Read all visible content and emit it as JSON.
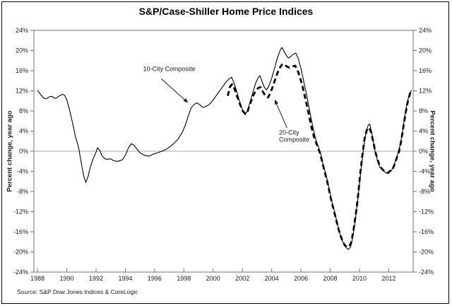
{
  "chart_data": {
    "type": "line",
    "title": "S&P/Case-Shiller Home Price Indices",
    "ylabel_left": "Percent change, year ago",
    "ylabel_right": "Percent change, year ago",
    "source_note": "Source: S&P Dow Jones Indices & CoreLogic",
    "xlim": [
      1987.75,
      2013.67
    ],
    "ylim": [
      -24,
      24
    ],
    "x_ticks": [
      1988,
      1990,
      1992,
      1994,
      1996,
      1998,
      2000,
      2002,
      2004,
      2006,
      2008,
      2010,
      2012
    ],
    "y_ticks": [
      24,
      20,
      16,
      12,
      8,
      4,
      0,
      -4,
      -8,
      -12,
      -16,
      -20,
      -24
    ],
    "y_tick_suffix": "%",
    "grid": "zero-line-only",
    "legend": "inline-annotations",
    "line_color": "#000000",
    "series": [
      {
        "name": "10-City Composite",
        "style": "solid",
        "points": [
          [
            1988.0,
            12.1
          ],
          [
            1988.2,
            11.3
          ],
          [
            1988.4,
            10.6
          ],
          [
            1988.6,
            10.4
          ],
          [
            1988.8,
            10.8
          ],
          [
            1989.0,
            10.9
          ],
          [
            1989.15,
            10.5
          ],
          [
            1989.3,
            10.6
          ],
          [
            1989.5,
            11.0
          ],
          [
            1989.7,
            11.3
          ],
          [
            1989.85,
            11.1
          ],
          [
            1990.0,
            10.2
          ],
          [
            1990.2,
            8.0
          ],
          [
            1990.4,
            5.5
          ],
          [
            1990.6,
            2.8
          ],
          [
            1990.8,
            0.8
          ],
          [
            1991.0,
            -2.5
          ],
          [
            1991.15,
            -4.8
          ],
          [
            1991.3,
            -6.2
          ],
          [
            1991.45,
            -5.0
          ],
          [
            1991.6,
            -3.2
          ],
          [
            1991.8,
            -1.5
          ],
          [
            1992.0,
            -0.2
          ],
          [
            1992.1,
            0.7
          ],
          [
            1992.25,
            0.2
          ],
          [
            1992.4,
            -0.9
          ],
          [
            1992.6,
            -1.5
          ],
          [
            1992.8,
            -1.6
          ],
          [
            1993.0,
            -1.5
          ],
          [
            1993.2,
            -1.9
          ],
          [
            1993.5,
            -2.0
          ],
          [
            1993.8,
            -1.7
          ],
          [
            1994.0,
            -0.8
          ],
          [
            1994.2,
            0.6
          ],
          [
            1994.4,
            1.5
          ],
          [
            1994.6,
            1.2
          ],
          [
            1994.8,
            0.4
          ],
          [
            1995.0,
            -0.3
          ],
          [
            1995.3,
            -0.8
          ],
          [
            1995.6,
            -1.0
          ],
          [
            1995.9,
            -0.6
          ],
          [
            1996.2,
            -0.3
          ],
          [
            1996.5,
            0.0
          ],
          [
            1996.8,
            0.4
          ],
          [
            1997.0,
            0.8
          ],
          [
            1997.3,
            1.5
          ],
          [
            1997.6,
            2.4
          ],
          [
            1997.9,
            3.8
          ],
          [
            1998.1,
            5.2
          ],
          [
            1998.3,
            7.0
          ],
          [
            1998.5,
            8.6
          ],
          [
            1998.7,
            9.3
          ],
          [
            1998.9,
            9.6
          ],
          [
            1999.1,
            9.2
          ],
          [
            1999.3,
            8.7
          ],
          [
            1999.5,
            8.9
          ],
          [
            1999.7,
            9.2
          ],
          [
            1999.9,
            9.8
          ],
          [
            2000.1,
            10.6
          ],
          [
            2000.3,
            11.4
          ],
          [
            2000.5,
            12.2
          ],
          [
            2000.7,
            13.0
          ],
          [
            2000.9,
            13.8
          ],
          [
            2001.1,
            14.4
          ],
          [
            2001.25,
            14.7
          ],
          [
            2001.4,
            13.8
          ],
          [
            2001.6,
            12.0
          ],
          [
            2001.8,
            10.0
          ],
          [
            2002.0,
            8.3
          ],
          [
            2002.2,
            7.4
          ],
          [
            2002.35,
            8.0
          ],
          [
            2002.5,
            9.6
          ],
          [
            2002.7,
            11.5
          ],
          [
            2002.9,
            13.5
          ],
          [
            2003.1,
            14.7
          ],
          [
            2003.2,
            15.0
          ],
          [
            2003.35,
            13.8
          ],
          [
            2003.5,
            12.7
          ],
          [
            2003.65,
            12.2
          ],
          [
            2003.8,
            12.9
          ],
          [
            2004.0,
            14.5
          ],
          [
            2004.2,
            16.5
          ],
          [
            2004.4,
            18.6
          ],
          [
            2004.6,
            20.2
          ],
          [
            2004.7,
            20.6
          ],
          [
            2004.85,
            19.8
          ],
          [
            2005.0,
            19.0
          ],
          [
            2005.15,
            18.5
          ],
          [
            2005.3,
            18.8
          ],
          [
            2005.5,
            19.3
          ],
          [
            2005.65,
            19.5
          ],
          [
            2005.8,
            18.5
          ],
          [
            2006.0,
            16.5
          ],
          [
            2006.2,
            13.8
          ],
          [
            2006.4,
            11.0
          ],
          [
            2006.6,
            8.0
          ],
          [
            2006.8,
            5.0
          ],
          [
            2007.0,
            2.5
          ],
          [
            2007.2,
            0.8
          ],
          [
            2007.35,
            -0.5
          ],
          [
            2007.5,
            -2.5
          ],
          [
            2007.7,
            -4.5
          ],
          [
            2007.9,
            -7.0
          ],
          [
            2008.1,
            -9.8
          ],
          [
            2008.3,
            -12.0
          ],
          [
            2008.5,
            -14.5
          ],
          [
            2008.7,
            -16.8
          ],
          [
            2008.9,
            -18.3
          ],
          [
            2009.1,
            -19.2
          ],
          [
            2009.25,
            -19.5
          ],
          [
            2009.4,
            -19.0
          ],
          [
            2009.55,
            -17.0
          ],
          [
            2009.7,
            -14.0
          ],
          [
            2009.85,
            -10.5
          ],
          [
            2010.0,
            -6.5
          ],
          [
            2010.15,
            -2.5
          ],
          [
            2010.3,
            1.0
          ],
          [
            2010.45,
            3.8
          ],
          [
            2010.6,
            5.2
          ],
          [
            2010.7,
            5.4
          ],
          [
            2010.85,
            3.5
          ],
          [
            2011.0,
            1.0
          ],
          [
            2011.1,
            -0.5
          ],
          [
            2011.25,
            -2.0
          ],
          [
            2011.4,
            -3.2
          ],
          [
            2011.6,
            -3.8
          ],
          [
            2011.8,
            -4.3
          ],
          [
            2011.95,
            -4.4
          ],
          [
            2012.1,
            -4.0
          ],
          [
            2012.2,
            -3.8
          ],
          [
            2012.35,
            -2.8
          ],
          [
            2012.5,
            -1.5
          ],
          [
            2012.65,
            -0.2
          ],
          [
            2012.8,
            1.5
          ],
          [
            2012.95,
            4.0
          ],
          [
            2013.1,
            7.0
          ],
          [
            2013.25,
            9.5
          ],
          [
            2013.4,
            11.2
          ],
          [
            2013.55,
            12.1
          ]
        ]
      },
      {
        "name": "20-City Composite",
        "style": "dashed",
        "points": [
          [
            2001.0,
            11.0
          ],
          [
            2001.15,
            12.8
          ],
          [
            2001.3,
            13.3
          ],
          [
            2001.45,
            12.5
          ],
          [
            2001.6,
            11.2
          ],
          [
            2001.8,
            9.6
          ],
          [
            2002.0,
            8.1
          ],
          [
            2002.2,
            7.4
          ],
          [
            2002.35,
            7.9
          ],
          [
            2002.5,
            9.2
          ],
          [
            2002.7,
            10.8
          ],
          [
            2002.9,
            12.0
          ],
          [
            2003.1,
            12.6
          ],
          [
            2003.25,
            12.7
          ],
          [
            2003.4,
            11.8
          ],
          [
            2003.6,
            10.9
          ],
          [
            2003.75,
            10.7
          ],
          [
            2003.9,
            11.5
          ],
          [
            2004.1,
            13.0
          ],
          [
            2004.3,
            14.8
          ],
          [
            2004.5,
            16.3
          ],
          [
            2004.7,
            17.2
          ],
          [
            2004.85,
            17.3
          ],
          [
            2005.0,
            16.9
          ],
          [
            2005.2,
            16.6
          ],
          [
            2005.4,
            16.8
          ],
          [
            2005.6,
            17.0
          ],
          [
            2005.75,
            16.3
          ],
          [
            2005.9,
            15.0
          ],
          [
            2006.1,
            13.0
          ],
          [
            2006.3,
            10.5
          ],
          [
            2006.5,
            7.8
          ],
          [
            2006.7,
            5.0
          ],
          [
            2006.9,
            2.8
          ],
          [
            2007.1,
            1.2
          ],
          [
            2007.3,
            -0.3
          ],
          [
            2007.45,
            -2.0
          ],
          [
            2007.6,
            -3.8
          ],
          [
            2007.8,
            -6.0
          ],
          [
            2008.0,
            -8.8
          ],
          [
            2008.2,
            -11.2
          ],
          [
            2008.4,
            -13.5
          ],
          [
            2008.6,
            -15.8
          ],
          [
            2008.8,
            -17.5
          ],
          [
            2009.0,
            -18.7
          ],
          [
            2009.15,
            -19.0
          ],
          [
            2009.3,
            -18.9
          ],
          [
            2009.45,
            -18.0
          ],
          [
            2009.6,
            -15.5
          ],
          [
            2009.75,
            -12.5
          ],
          [
            2009.9,
            -9.0
          ],
          [
            2010.05,
            -4.5
          ],
          [
            2010.2,
            -0.8
          ],
          [
            2010.35,
            2.5
          ],
          [
            2010.5,
            4.2
          ],
          [
            2010.65,
            4.7
          ],
          [
            2010.8,
            3.8
          ],
          [
            2010.95,
            1.8
          ],
          [
            2011.1,
            -0.3
          ],
          [
            2011.25,
            -1.8
          ],
          [
            2011.4,
            -3.0
          ],
          [
            2011.6,
            -3.7
          ],
          [
            2011.8,
            -4.2
          ],
          [
            2011.95,
            -4.3
          ],
          [
            2012.1,
            -3.9
          ],
          [
            2012.25,
            -3.7
          ],
          [
            2012.4,
            -2.6
          ],
          [
            2012.55,
            -1.3
          ],
          [
            2012.7,
            -0.1
          ],
          [
            2012.85,
            2.0
          ],
          [
            2013.0,
            4.8
          ],
          [
            2013.15,
            7.5
          ],
          [
            2013.3,
            9.8
          ],
          [
            2013.45,
            11.4
          ],
          [
            2013.55,
            12.2
          ]
        ]
      }
    ],
    "annotations": [
      {
        "lines": [
          "10-City Composite"
        ],
        "text_x": 1997.0,
        "text_y": 15.9,
        "align": "middle",
        "arrow": {
          "from": [
            1996.45,
            14.4
          ],
          "to": [
            1998.3,
            9.6
          ]
        }
      },
      {
        "lines": [
          "20-City",
          "Composite"
        ],
        "text_x": 2004.5,
        "text_y": 3.3,
        "align": "start",
        "arrow": {
          "from": [
            2005.05,
            4.6
          ],
          "to": [
            2004.2,
            10.3
          ]
        }
      }
    ]
  }
}
